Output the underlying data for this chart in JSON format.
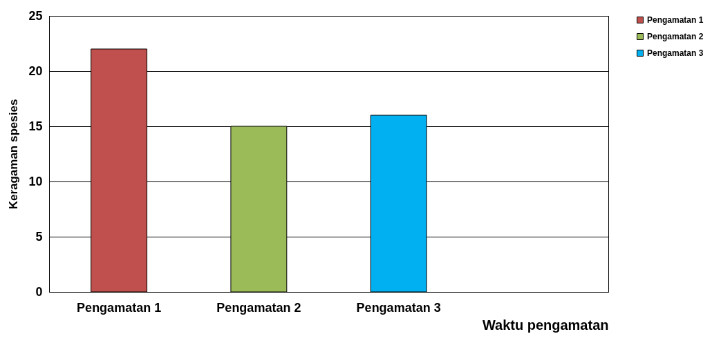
{
  "chart_data": {
    "type": "bar",
    "categories": [
      "Pengamatan 1",
      "Pengamatan 2",
      "Pengamatan 3",
      null
    ],
    "series": [
      {
        "name": "Pengamatan 1",
        "color": "#c0504d",
        "values": [
          22,
          null,
          null,
          null
        ]
      },
      {
        "name": "Pengamatan 2",
        "color": "#9bbb59",
        "values": [
          null,
          15,
          null,
          null
        ]
      },
      {
        "name": "Pengamatan 3",
        "color": "#00b0f0",
        "values": [
          null,
          null,
          16,
          null
        ]
      }
    ],
    "xlabel": "Waktu pengamatan",
    "ylabel": "Keragaman spesies",
    "ylim": [
      0,
      25
    ],
    "yticks": [
      0,
      5,
      10,
      15,
      20,
      25
    ],
    "grid": "y",
    "legend": "right"
  }
}
